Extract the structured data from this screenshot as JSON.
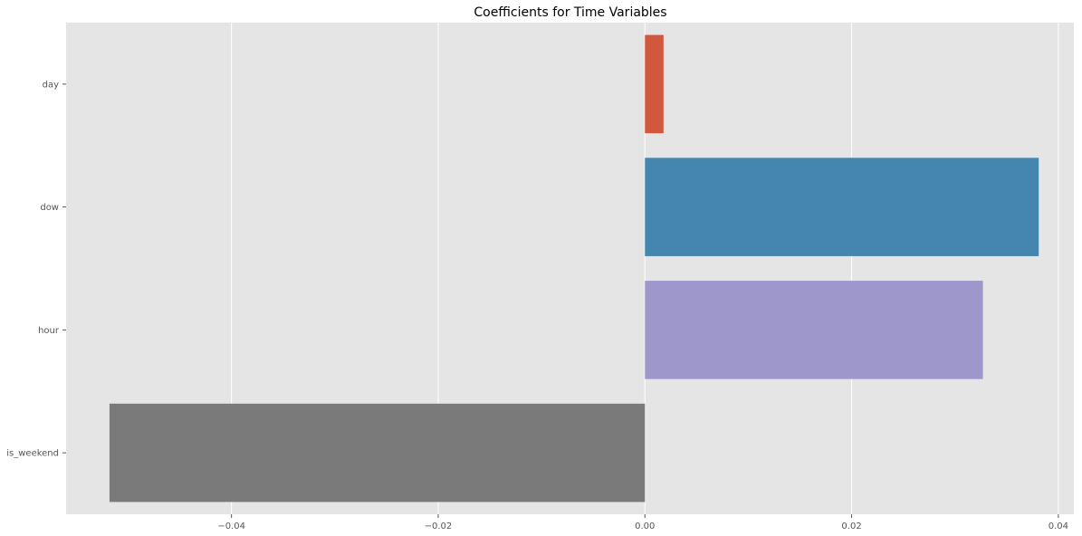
{
  "chart_data": {
    "type": "bar",
    "orientation": "horizontal",
    "title": "Coefficients for Time Variables",
    "xlabel": "",
    "ylabel": "",
    "categories": [
      "day",
      "dow",
      "hour",
      "is_weekend"
    ],
    "values": [
      0.0018,
      0.0381,
      0.0327,
      -0.0518
    ],
    "colors": [
      "#d1573d",
      "#4486ae",
      "#9e97cb",
      "#7a7a7a"
    ],
    "xlim": [
      -0.056,
      0.0415
    ],
    "xticks": [
      -0.04,
      -0.02,
      0.0,
      0.02,
      0.04
    ],
    "xtick_labels": [
      "−0.04",
      "−0.02",
      "0.00",
      "0.02",
      "0.04"
    ],
    "grid": true,
    "background": "#e5e5e5",
    "grid_color": "#ffffff",
    "legend": "none"
  }
}
